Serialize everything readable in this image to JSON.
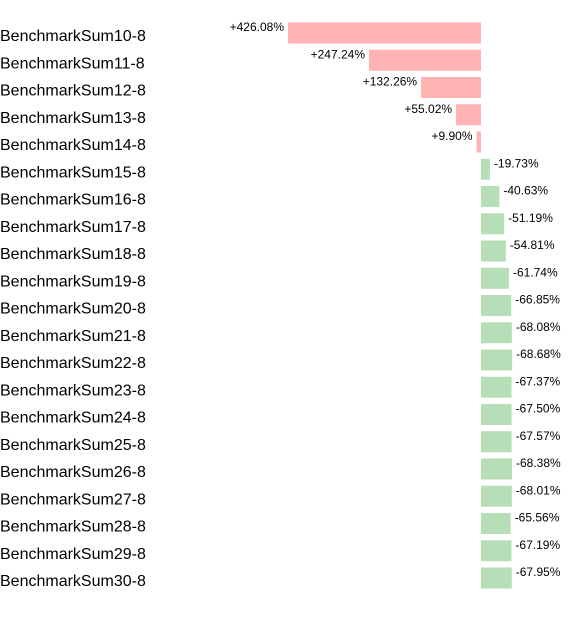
{
  "chart_data": {
    "type": "bar",
    "orientation": "horizontal",
    "title": "",
    "xlabel": "",
    "ylabel": "",
    "grid": false,
    "legend": "none",
    "categories": [
      "BenchmarkSum10-8",
      "BenchmarkSum11-8",
      "BenchmarkSum12-8",
      "BenchmarkSum13-8",
      "BenchmarkSum14-8",
      "BenchmarkSum15-8",
      "BenchmarkSum16-8",
      "BenchmarkSum17-8",
      "BenchmarkSum18-8",
      "BenchmarkSum19-8",
      "BenchmarkSum20-8",
      "BenchmarkSum21-8",
      "BenchmarkSum22-8",
      "BenchmarkSum23-8",
      "BenchmarkSum24-8",
      "BenchmarkSum25-8",
      "BenchmarkSum26-8",
      "BenchmarkSum27-8",
      "BenchmarkSum28-8",
      "BenchmarkSum29-8",
      "BenchmarkSum30-8"
    ],
    "values": [
      426.08,
      247.24,
      132.26,
      55.02,
      9.9,
      -19.73,
      -40.63,
      -51.19,
      -54.81,
      -61.74,
      -66.85,
      -68.08,
      -68.68,
      -67.37,
      -67.5,
      -67.57,
      -68.38,
      -68.01,
      -65.56,
      -67.19,
      -67.95
    ],
    "value_labels": [
      "+426.08%",
      "+247.24%",
      "+132.26%",
      "+55.02%",
      "+9.90%",
      "-19.73%",
      "-40.63%",
      "-51.19%",
      "-54.81%",
      "-61.74%",
      "-66.85%",
      "-68.08%",
      "-68.68%",
      "-67.37%",
      "-67.50%",
      "-67.57%",
      "-68.38%",
      "-68.01%",
      "-65.56%",
      "-67.19%",
      "-67.95%"
    ],
    "colors": {
      "positive": "#ffb3b3",
      "negative": "#b7dfb7"
    }
  }
}
